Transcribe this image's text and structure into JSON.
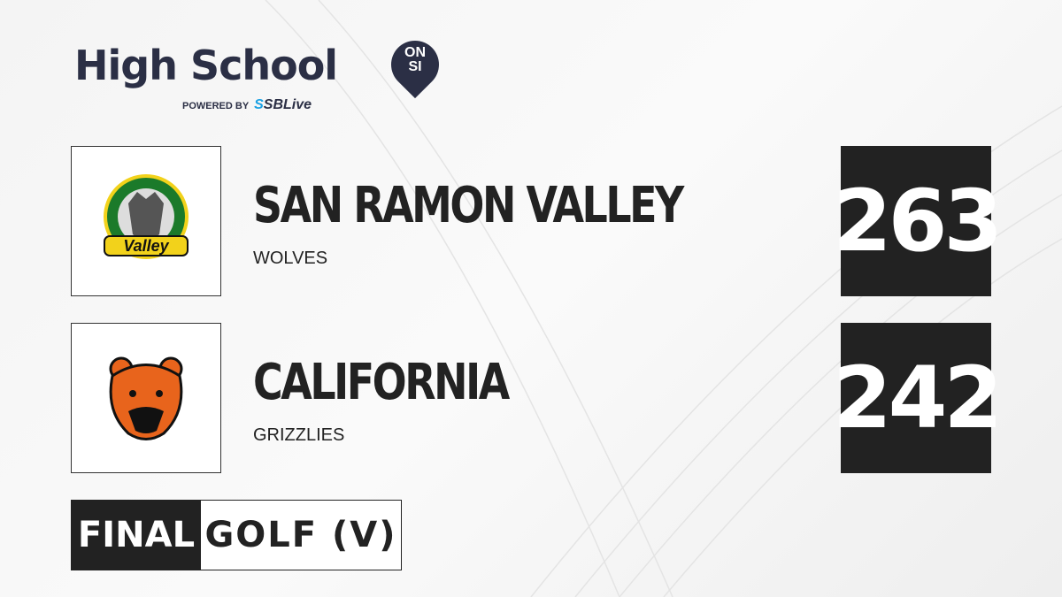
{
  "brand": {
    "title": "High School",
    "pin_text_top": "ON",
    "pin_text_bottom": "SI",
    "powered_by": "POWERED BY",
    "partner_prefix": "S",
    "partner": "SBLive"
  },
  "teams": [
    {
      "name": "SAN RAMON VALLEY",
      "mascot": "WOLVES",
      "score": "263",
      "logo_text": "Valley",
      "logo_colors": [
        "#1b7a2a",
        "#f2d21b"
      ]
    },
    {
      "name": "CALIFORNIA",
      "mascot": "GRIZZLIES",
      "score": "242",
      "logo_colors": [
        "#e8641c",
        "#111111"
      ]
    }
  ],
  "status": "FINAL",
  "sport": "GOLF (V)"
}
